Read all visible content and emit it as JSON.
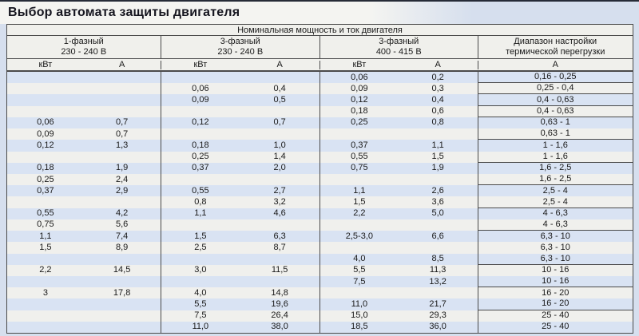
{
  "title": "Выбор автомата защиты двигателя",
  "table": {
    "main_header": "Номинальная мощность и ток двигателя",
    "groups": [
      {
        "line1": "1-фазный",
        "line2": "230 - 240 В"
      },
      {
        "line1": "3-фазный",
        "line2": "230 - 240 В"
      },
      {
        "line1": "3-фазный",
        "line2": "400 - 415 В"
      },
      {
        "line1": "Диапазон настройки",
        "line2": "термической перегрузки"
      }
    ],
    "units": [
      "кВт",
      "А",
      "кВт",
      "А",
      "кВт",
      "А",
      "А"
    ],
    "rows": [
      [
        "",
        "",
        "",
        "",
        "0,06",
        "0,2",
        "0,16 - 0,25"
      ],
      [
        "",
        "",
        "0,06",
        "0,4",
        "0,09",
        "0,3",
        "0,25 - 0,4"
      ],
      [
        "",
        "",
        "0,09",
        "0,5",
        "0,12",
        "0,4",
        "0,4 - 0,63"
      ],
      [
        "",
        "",
        "",
        "",
        "0,18",
        "0,6",
        "0,4 - 0,63"
      ],
      [
        "0,06",
        "0,7",
        "0,12",
        "0,7",
        "0,25",
        "0,8",
        "0,63 - 1"
      ],
      [
        "0,09",
        "0,7",
        "",
        "",
        "",
        "",
        "0,63 - 1"
      ],
      [
        "0,12",
        "1,3",
        "0,18",
        "1,0",
        "0,37",
        "1,1",
        "1 - 1,6"
      ],
      [
        "",
        "",
        "0,25",
        "1,4",
        "0,55",
        "1,5",
        "1 - 1,6"
      ],
      [
        "0,18",
        "1,9",
        "0,37",
        "2,0",
        "0,75",
        "1,9",
        "1,6 - 2,5"
      ],
      [
        "0,25",
        "2,4",
        "",
        "",
        "",
        "",
        "1,6 - 2,5"
      ],
      [
        "0,37",
        "2,9",
        "0,55",
        "2,7",
        "1,1",
        "2,6",
        "2,5 - 4"
      ],
      [
        "",
        "",
        "0,8",
        "3,2",
        "1,5",
        "3,6",
        "2,5 - 4"
      ],
      [
        "0,55",
        "4,2",
        "1,1",
        "4,6",
        "2,2",
        "5,0",
        "4 - 6,3"
      ],
      [
        "0,75",
        "5,6",
        "",
        "",
        "",
        "",
        "4 - 6,3"
      ],
      [
        "1,1",
        "7,4",
        "1,5",
        "6,3",
        "2,5-3,0",
        "6,6",
        "6,3 - 10"
      ],
      [
        "1,5",
        "8,9",
        "2,5",
        "8,7",
        "",
        "",
        "6,3 - 10"
      ],
      [
        "",
        "",
        "",
        "",
        "4,0",
        "8,5",
        "6,3 - 10"
      ],
      [
        "2,2",
        "14,5",
        "3,0",
        "11,5",
        "5,5",
        "11,3",
        "10 - 16"
      ],
      [
        "",
        "",
        "",
        "",
        "7,5",
        "13,2",
        "10 - 16"
      ],
      [
        "3",
        "17,8",
        "4,0",
        "14,8",
        "",
        "",
        "16 - 20"
      ],
      [
        "",
        "",
        "5,5",
        "19,6",
        "11,0",
        "21,7",
        "16 - 20"
      ],
      [
        "",
        "",
        "7,5",
        "26,4",
        "15,0",
        "29,3",
        "25 - 40"
      ],
      [
        "",
        "",
        "11,0",
        "38,0",
        "18,5",
        "36,0",
        "25 - 40"
      ]
    ],
    "range_border_after_rows": [
      1,
      2,
      3,
      4,
      6,
      8,
      10,
      12,
      14,
      17,
      19,
      21,
      23
    ]
  },
  "colors": {
    "page_bg": "#d6dfee",
    "top_strip": "#262b37",
    "title_bg": "#f4f4f1",
    "header_bg": "#f0f0ec",
    "stripe_blue": "#d9e3f3",
    "stripe_white": "#f0f0ed",
    "border": "#4a4a4a",
    "text": "#191919"
  }
}
